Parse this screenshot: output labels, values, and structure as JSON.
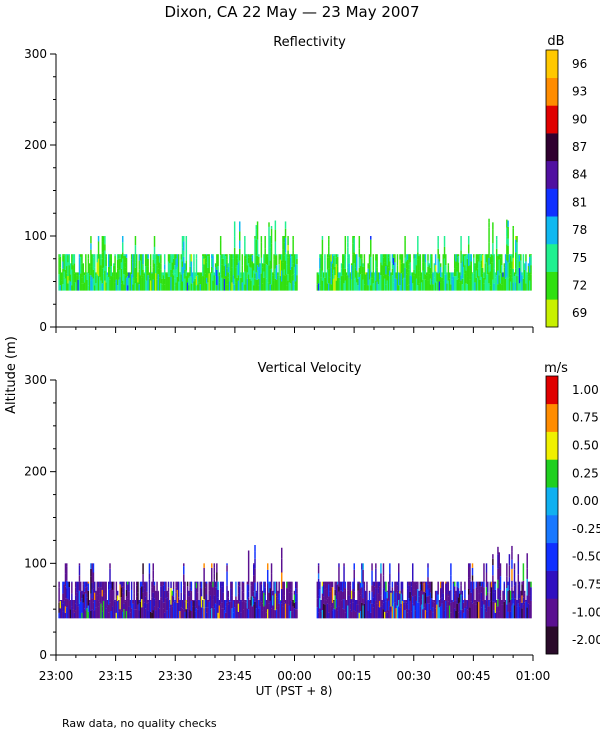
{
  "figure": {
    "title": "Dixon, CA 22 May — 23 May 2007",
    "ylabel": "Altitude (m)",
    "xlabel": "UT  (PST + 8)",
    "footer": "Raw data, no quality checks"
  },
  "x_ticks": [
    "23:00",
    "23:15",
    "23:30",
    "23:45",
    "00:00",
    "00:15",
    "00:30",
    "00:45",
    "01:00"
  ],
  "chart_data": [
    {
      "type": "heatmap",
      "title": "Reflectivity",
      "xlabel": "UT  (PST + 8)",
      "ylabel": "Altitude (m)",
      "x_range_minutes": [
        0,
        120
      ],
      "x_ticks": [
        "23:00",
        "23:15",
        "23:30",
        "23:45",
        "00:00",
        "00:15",
        "00:30",
        "00:45",
        "01:00"
      ],
      "ylim": [
        0,
        300
      ],
      "y_ticks": [
        0,
        100,
        200,
        300
      ],
      "data_gap_minutes": [
        0.5,
        5.5
      ],
      "gap_start_minute": 60,
      "data_base_altitude": 40,
      "colorbar": {
        "unit": "dB",
        "tick_labels": [
          "69",
          "72",
          "75",
          "78",
          "81",
          "84",
          "87",
          "90",
          "93",
          "96"
        ],
        "colors": [
          "#c8f000",
          "#30e010",
          "#20f090",
          "#10b8f0",
          "#1030ff",
          "#5010a0",
          "#300030",
          "#e00000",
          "#ff8c00",
          "#ffc800"
        ]
      },
      "palette_weights": [
        0.02,
        0.55,
        0.3,
        0.12,
        0.01,
        0,
        0,
        0,
        0,
        0
      ]
    },
    {
      "type": "heatmap",
      "title": "Vertical Velocity",
      "xlabel": "UT  (PST + 8)",
      "ylabel": "Altitude (m)",
      "x_range_minutes": [
        0,
        120
      ],
      "x_ticks": [
        "23:00",
        "23:15",
        "23:30",
        "23:45",
        "00:00",
        "00:15",
        "00:30",
        "00:45",
        "01:00"
      ],
      "ylim": [
        0,
        300
      ],
      "y_ticks": [
        0,
        100,
        200,
        300
      ],
      "data_gap_minutes": [
        0.5,
        5.5
      ],
      "gap_start_minute": 60,
      "data_base_altitude": 40,
      "colorbar": {
        "unit": "m/s",
        "tick_labels": [
          "-2.00",
          "-1.00",
          "-0.75",
          "-0.50",
          "-0.25",
          "0.00",
          "0.25",
          "0.50",
          "0.75",
          "1.00"
        ],
        "colors": [
          "#2a0a2a",
          "#5a1090",
          "#3010c0",
          "#1030ff",
          "#1878ff",
          "#10b0f0",
          "#20d020",
          "#f0f000",
          "#ff8c00",
          "#e00000"
        ]
      },
      "palette_weights": [
        0.05,
        0.55,
        0.2,
        0.1,
        0.02,
        0.02,
        0.02,
        0.02,
        0.02,
        0.0
      ]
    }
  ]
}
